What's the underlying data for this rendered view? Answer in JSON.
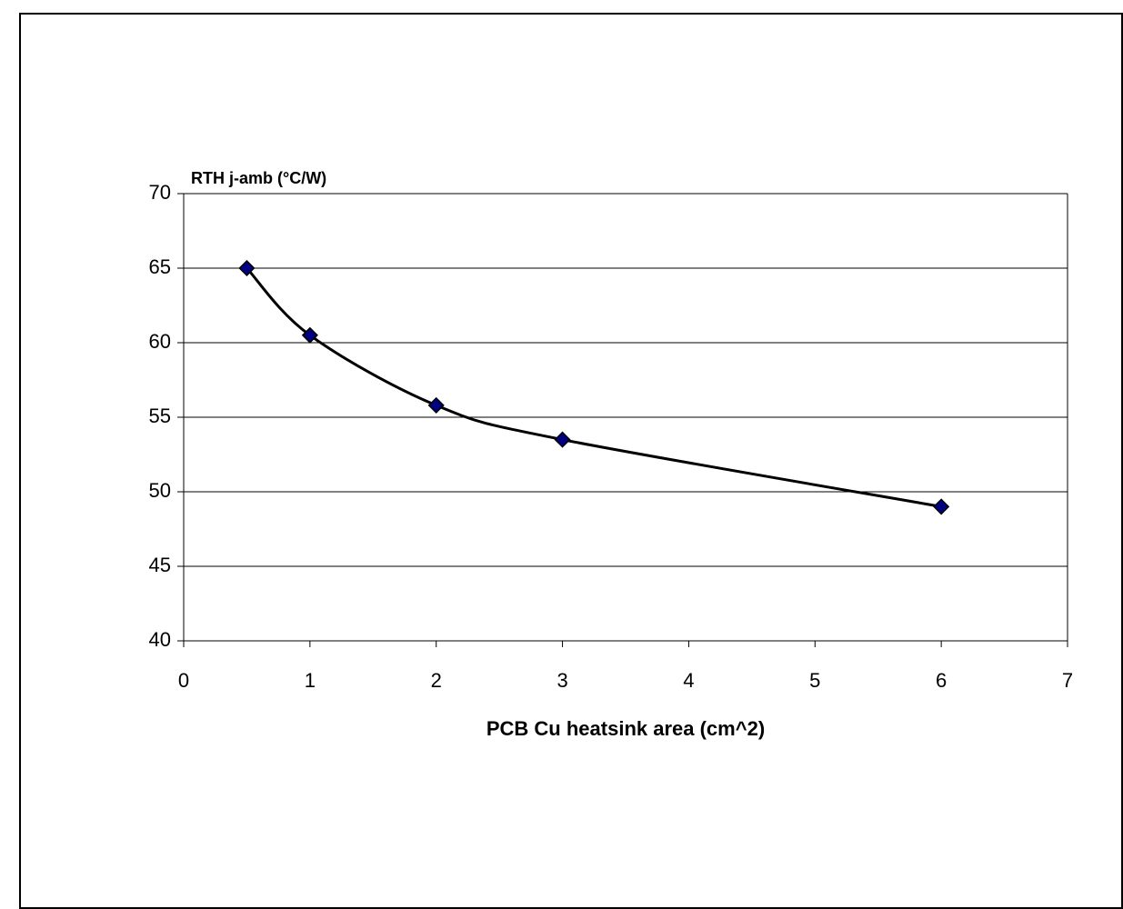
{
  "chart_data": {
    "type": "line",
    "y_label": "RTH j-amb (°C/W)",
    "x_label": "PCB Cu heatsink area (cm^2)",
    "x": [
      0.5,
      1,
      2,
      3,
      6
    ],
    "series": [
      {
        "color": "#000000",
        "marker_color": "#000080",
        "values": [
          65,
          60.5,
          55.8,
          53.5,
          49
        ]
      }
    ],
    "xlim": [
      0,
      7
    ],
    "xticks": [
      0,
      1,
      2,
      3,
      4,
      5,
      6,
      7
    ],
    "ylim": [
      40,
      70
    ],
    "yticks": [
      40,
      45,
      50,
      55,
      60,
      65,
      70
    ],
    "grid": true
  }
}
